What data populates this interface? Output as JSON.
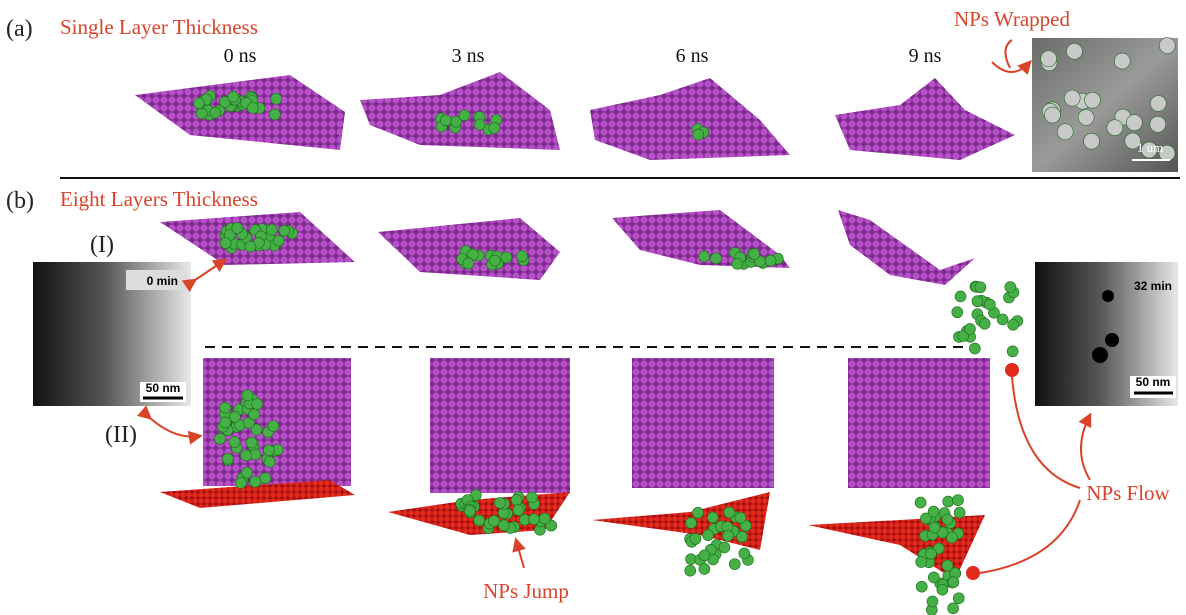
{
  "panel_a": {
    "label": "(a)",
    "title": "Single Layer Thickness",
    "times": [
      "0 ns",
      "3 ns",
      "6 ns",
      "9 ns"
    ],
    "annotation": "NPs Wrapped",
    "scale_bar": "1 um"
  },
  "panel_b": {
    "label": "(b)",
    "title": "Eight Layers Thickness",
    "row_labels": [
      "(I)",
      "(II)"
    ],
    "left_image": {
      "time": "0 min",
      "scale_bar": "50 nm"
    },
    "right_image": {
      "time": "32 min",
      "scale_bar": "50 nm"
    },
    "annotations": [
      "NPs Flow",
      "NPs Jump"
    ]
  }
}
